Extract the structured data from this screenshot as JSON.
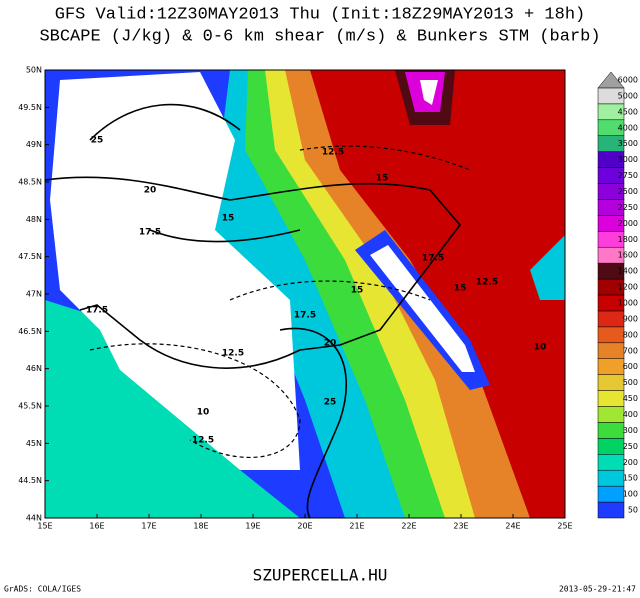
{
  "title": {
    "line1": "GFS Valid:12Z30MAY2013 Thu (Init:18Z29MAY2013 + 18h)",
    "line2": "SBCAPE (J/kg) & 0-6 km shear (m/s) & Bunkers STM (barb)"
  },
  "lat_labels": [
    "50N",
    "49.5N",
    "49N",
    "48.5N",
    "48N",
    "47.5N",
    "47N",
    "46.5N",
    "46N",
    "45.5N",
    "45N",
    "44.5N",
    "44N"
  ],
  "lon_labels": [
    "15E",
    "16E",
    "17E",
    "18E",
    "19E",
    "20E",
    "21E",
    "22E",
    "23E",
    "24E",
    "25E"
  ],
  "legend": {
    "labels": [
      "50",
      "100",
      "150",
      "200",
      "250",
      "300",
      "400",
      "450",
      "500",
      "600",
      "700",
      "800",
      "900",
      "1000",
      "1200",
      "1400",
      "1600",
      "1800",
      "2000",
      "2250",
      "2500",
      "2750",
      "3000",
      "3500",
      "4000",
      "4500",
      "5000",
      "6000"
    ],
    "colors": [
      "#1e3cff",
      "#00a0ff",
      "#00c8dc",
      "#00dcb4",
      "#00d264",
      "#3cdc3c",
      "#a0e632",
      "#e6e632",
      "#e6c832",
      "#f0a028",
      "#e68228",
      "#e65a1e",
      "#dc2814",
      "#c80000",
      "#a00000",
      "#500a14",
      "#ff78c8",
      "#ff3cdc",
      "#dc00dc",
      "#b400dc",
      "#8c00dc",
      "#6e00dc",
      "#5000c8",
      "#28b478",
      "#50dc6e",
      "#a0f0a0",
      "#dcdcdc",
      "#a0a0a0"
    ]
  },
  "contour_labels": [
    "25",
    "20",
    "17.5",
    "15",
    "17.5",
    "12.5",
    "10",
    "12.5",
    "25",
    "20",
    "17.5",
    "15",
    "12.5",
    "15",
    "17.5",
    "15",
    "12.5",
    "10"
  ],
  "footer": {
    "site": "SZUPERCELLA.HU",
    "credit": "GrADS: COLA/IGES",
    "timestamp": "2013-05-29-21:47"
  }
}
